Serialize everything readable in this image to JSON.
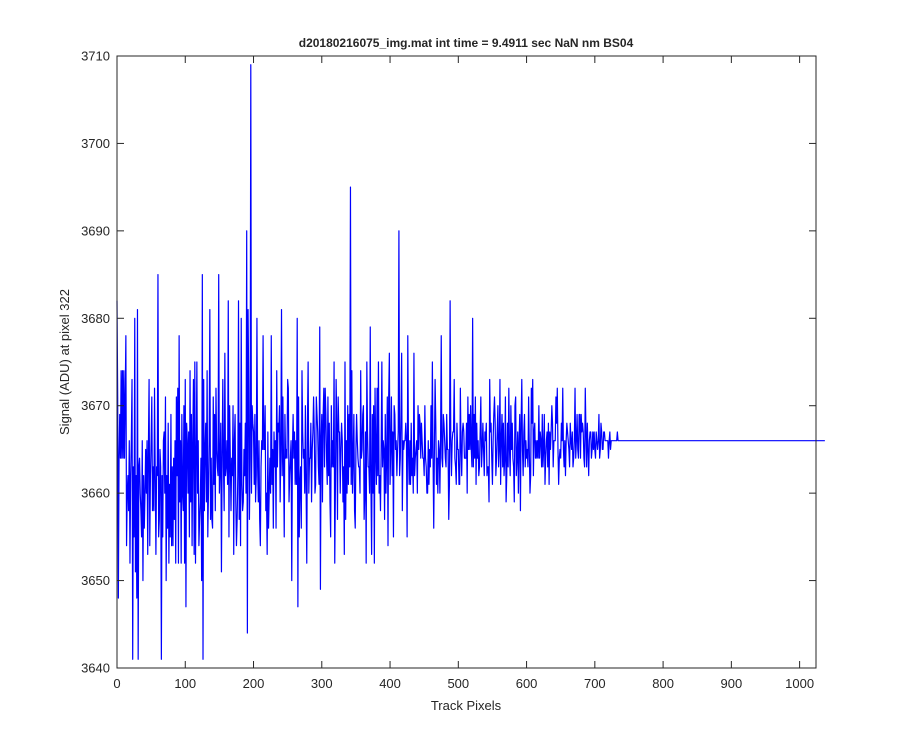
{
  "chart_data": {
    "type": "line",
    "title": "d20180216075_img.mat int time = 9.4911 sec  NaN nm BS04",
    "xlabel": "Track Pixels",
    "ylabel": "Signal (ADU) at pixel 322",
    "xlim": [
      0,
      1024
    ],
    "ylim": [
      3640,
      3710
    ],
    "xticks": [
      0,
      100,
      200,
      300,
      400,
      500,
      600,
      700,
      800,
      900,
      1000
    ],
    "yticks": [
      3640,
      3650,
      3660,
      3670,
      3680,
      3690,
      3700,
      3710
    ],
    "grid": false,
    "series_color": "#0000ff",
    "series": [
      {
        "x_start": 0,
        "x_step": 1,
        "values": [
          3682,
          3671,
          3648,
          3664,
          3669,
          3664,
          3674,
          3664,
          3674,
          3664,
          3674,
          3664,
          3671,
          3678,
          3654,
          3660,
          3662,
          3658,
          3666,
          3652,
          3662,
          3666,
          3673,
          3641,
          3663,
          3655,
          3680,
          3651,
          3662,
          3648,
          3681,
          3641,
          3663,
          3664,
          3660,
          3658,
          3655,
          3666,
          3650,
          3662,
          3656,
          3660,
          3665,
          3660,
          3666,
          3653,
          3665,
          3673,
          3654,
          3662,
          3666,
          3671,
          3658,
          3663,
          3658,
          3672,
          3662,
          3653,
          3663,
          3662,
          3685,
          3655,
          3657,
          3665,
          3663,
          3641,
          3662,
          3655,
          3666,
          3667,
          3660,
          3671,
          3650,
          3662,
          3656,
          3668,
          3652,
          3661,
          3655,
          3669,
          3654,
          3663,
          3654,
          3664,
          3657,
          3666,
          3652,
          3671,
          3662,
          3672,
          3652,
          3678,
          3659,
          3666,
          3652,
          3669,
          3660,
          3658,
          3670,
          3652,
          3673,
          3647,
          3668,
          3666,
          3660,
          3667,
          3655,
          3674,
          3659,
          3669,
          3654,
          3666,
          3673,
          3653,
          3675,
          3652,
          3663,
          3675,
          3660,
          3666,
          3654,
          3657,
          3659,
          3664,
          3650,
          3685,
          3641,
          3673,
          3658,
          3665,
          3668,
          3659,
          3674,
          3655,
          3660,
          3666,
          3681,
          3657,
          3664,
          3657,
          3656,
          3671,
          3661,
          3669,
          3658,
          3672,
          3665,
          3663,
          3662,
          3685,
          3660,
          3663,
          3668,
          3651,
          3664,
          3673,
          3663,
          3658,
          3676,
          3662,
          3663,
          3666,
          3661,
          3682,
          3655,
          3670,
          3664,
          3658,
          3664,
          3662,
          3670,
          3653,
          3666,
          3669,
          3659,
          3654,
          3657,
          3662,
          3682,
          3657,
          3668,
          3654,
          3680,
          3661,
          3658,
          3659,
          3665,
          3662,
          3668,
          3660,
          3690,
          3644,
          3681,
          3672,
          3657,
          3664,
          3709,
          3660,
          3670,
          3668,
          3667,
          3661,
          3669,
          3659,
          3662,
          3680,
          3663,
          3659,
          3666,
          3657,
          3654,
          3663,
          3666,
          3665,
          3678,
          3665,
          3665,
          3670,
          3658,
          3660,
          3653,
          3667,
          3656,
          3660,
          3664,
          3660,
          3678,
          3661,
          3665,
          3656,
          3667,
          3663,
          3666,
          3656,
          3674,
          3663,
          3668,
          3667,
          3670,
          3659,
          3665,
          3681,
          3662,
          3671,
          3663,
          3655,
          3669,
          3664,
          3665,
          3664,
          3673,
          3672,
          3659,
          3662,
          3664,
          3666,
          3650,
          3665,
          3669,
          3664,
          3667,
          3661,
          3666,
          3661,
          3680,
          3647,
          3671,
          3655,
          3661,
          3663,
          3656,
          3674,
          3667,
          3664,
          3665,
          3660,
          3670,
          3661,
          3652,
          3668,
          3675,
          3660,
          3664,
          3664,
          3668,
          3659,
          3665,
          3667,
          3671,
          3667,
          3660,
          3661,
          3671,
          3669,
          3667,
          3663,
          3661,
          3679,
          3649,
          3666,
          3669,
          3659,
          3669,
          3672,
          3663,
          3672,
          3669,
          3664,
          3661,
          3671,
          3662,
          3668,
          3659,
          3655,
          3670,
          3663,
          3666,
          3663,
          3675,
          3652,
          3661,
          3673,
          3668,
          3657,
          3671,
          3667,
          3667,
          3660,
          3665,
          3668,
          3666,
          3659,
          3663,
          3653,
          3675,
          3657,
          3666,
          3660,
          3670,
          3661,
          3669,
          3663,
          3695,
          3661,
          3674,
          3660,
          3664,
          3669,
          3658,
          3656,
          3665,
          3669,
          3666,
          3664,
          3663,
          3663,
          3660,
          3674,
          3664,
          3665,
          3669,
          3670,
          3657,
          3660,
          3667,
          3652,
          3675,
          3667,
          3663,
          3663,
          3660,
          3679,
          3661,
          3653,
          3669,
          3660,
          3670,
          3652,
          3672,
          3665,
          3661,
          3672,
          3662,
          3675,
          3660,
          3662,
          3658,
          3665,
          3675,
          3663,
          3666,
          3665,
          3657,
          3669,
          3660,
          3664,
          3671,
          3654,
          3671,
          3676,
          3661,
          3665,
          3671,
          3662,
          3667,
          3655,
          3670,
          3669,
          3665,
          3666,
          3662,
          3665,
          3667,
          3690,
          3662,
          3664,
          3669,
          3676,
          3658,
          3666,
          3665,
          3666,
          3666,
          3668,
          3666,
          3655,
          3678,
          3665,
          3661,
          3666,
          3661,
          3668,
          3662,
          3664,
          3660,
          3676,
          3662,
          3664,
          3665,
          3666,
          3660,
          3670,
          3665,
          3669,
          3668,
          3664,
          3668,
          3666,
          3664,
          3664,
          3662,
          3670,
          3664,
          3663,
          3660,
          3660,
          3666,
          3661,
          3665,
          3663,
          3670,
          3664,
          3675,
          3664,
          3656,
          3665,
          3673,
          3668,
          3661,
          3664,
          3660,
          3666,
          3665,
          3660,
          3666,
          3678,
          3664,
          3663,
          3669,
          3668,
          3666,
          3664,
          3663,
          3669,
          3665,
          3665,
          3657,
          3661,
          3682,
          3666,
          3662,
          3666,
          3667,
          3667,
          3673,
          3664,
          3663,
          3661,
          3668,
          3665,
          3665,
          3661,
          3661,
          3672,
          3665,
          3662,
          3667,
          3668,
          3667,
          3664,
          3664,
          3664,
          3668,
          3660,
          3671,
          3665,
          3669,
          3665,
          3670,
          3665,
          3663,
          3680,
          3663,
          3669,
          3664,
          3671,
          3661,
          3668,
          3664,
          3666,
          3662,
          3663,
          3667,
          3671,
          3663,
          3665,
          3668,
          3665,
          3662,
          3667,
          3666,
          3668,
          3662,
          3663,
          3663,
          3659,
          3673,
          3667,
          3668,
          3664,
          3661,
          3666,
          3669,
          3671,
          3668,
          3662,
          3664,
          3667,
          3670,
          3663,
          3665,
          3673,
          3661,
          3666,
          3669,
          3663,
          3668,
          3662,
          3664,
          3671,
          3659,
          3662,
          3668,
          3663,
          3672,
          3665,
          3662,
          3670,
          3665,
          3668,
          3664,
          3663,
          3659,
          3670,
          3671,
          3662,
          3664,
          3667,
          3660,
          3666,
          3669,
          3658,
          3668,
          3673,
          3665,
          3662,
          3667,
          3669,
          3663,
          3666,
          3664,
          3665,
          3663,
          3671,
          3665,
          3660,
          3662,
          3672,
          3668,
          3673,
          3662,
          3667,
          3668,
          3664,
          3666,
          3664,
          3666,
          3664,
          3670,
          3664,
          3667,
          3666,
          3663,
          3669,
          3663,
          3665,
          3669,
          3661,
          3664,
          3666,
          3667,
          3663,
          3668,
          3661,
          3667,
          3665,
          3667,
          3670,
          3668,
          3663,
          3666,
          3666,
          3666,
          3671,
          3668,
          3672,
          3665,
          3661,
          3664,
          3665,
          3664,
          3668,
          3666,
          3672,
          3665,
          3663,
          3666,
          3662,
          3666,
          3668,
          3667,
          3666,
          3665,
          3663,
          3668,
          3666,
          3665,
          3667,
          3663,
          3664,
          3666,
          3672,
          3664,
          3666,
          3669,
          3665,
          3664,
          3669,
          3669,
          3664,
          3669,
          3667,
          3668,
          3667,
          3664,
          3663,
          3672,
          3667,
          3663,
          3668,
          3665,
          3662,
          3666,
          3667,
          3667,
          3664,
          3665,
          3667,
          3665,
          3667,
          3665,
          3664,
          3667,
          3666,
          3665,
          3666,
          3669,
          3664,
          3665,
          3668,
          3667,
          3665,
          3665,
          3667,
          3667,
          3666,
          3666,
          3666,
          3666,
          3666,
          3664,
          3666,
          3667,
          3665,
          3666,
          3666,
          3666,
          3666,
          3666,
          3666,
          3666,
          3666,
          3666,
          3667,
          3666,
          3666,
          3666,
          3666,
          3666,
          3666,
          3666,
          3666,
          3666,
          3666,
          3666,
          3666,
          3666,
          3666,
          3666,
          3666,
          3666,
          3666,
          3666,
          3666,
          3666,
          3666,
          3666,
          3666,
          3666,
          3666,
          3666,
          3666,
          3666,
          3666,
          3666,
          3666,
          3666,
          3666,
          3666,
          3666,
          3666,
          3666,
          3666,
          3666,
          3666,
          3666,
          3666,
          3666,
          3666,
          3666,
          3666,
          3666,
          3666,
          3666,
          3666,
          3666,
          3666,
          3666,
          3666,
          3666,
          3666,
          3666,
          3666,
          3666,
          3666,
          3666,
          3666,
          3666,
          3666,
          3666,
          3666,
          3666,
          3666,
          3666,
          3666,
          3666,
          3666,
          3666,
          3666,
          3666,
          3666,
          3666,
          3666,
          3666,
          3666,
          3666,
          3666,
          3666,
          3666,
          3666,
          3666,
          3666,
          3666,
          3666,
          3666,
          3666,
          3666,
          3666,
          3666,
          3666,
          3666,
          3666,
          3666,
          3666,
          3666,
          3666,
          3666,
          3666,
          3666,
          3666,
          3666,
          3666,
          3666,
          3666,
          3666,
          3666,
          3666,
          3666,
          3666,
          3666,
          3666,
          3666,
          3666,
          3666,
          3666,
          3666,
          3666,
          3666,
          3666,
          3666,
          3666,
          3666,
          3666,
          3666,
          3666,
          3666,
          3666,
          3666,
          3666,
          3666,
          3666,
          3666,
          3666,
          3666,
          3666,
          3666,
          3666,
          3666,
          3666,
          3666,
          3666,
          3666,
          3666,
          3666,
          3666,
          3666,
          3666,
          3666,
          3666,
          3666,
          3666,
          3666,
          3666,
          3666,
          3666,
          3666,
          3666,
          3666,
          3666,
          3666,
          3666,
          3666,
          3666,
          3666,
          3666,
          3666,
          3666,
          3666,
          3666,
          3666,
          3666,
          3666,
          3666,
          3666,
          3666,
          3666,
          3666,
          3666,
          3666,
          3666,
          3666,
          3666,
          3666,
          3666,
          3666,
          3666,
          3666,
          3666,
          3666,
          3666,
          3666,
          3666,
          3666,
          3666,
          3666,
          3666,
          3666,
          3666,
          3666,
          3666,
          3666,
          3666,
          3666,
          3666,
          3666,
          3666,
          3666,
          3666,
          3666,
          3666,
          3666,
          3666,
          3666,
          3666,
          3666,
          3666,
          3666,
          3666,
          3666,
          3666,
          3666,
          3666,
          3666,
          3666,
          3666,
          3666,
          3666,
          3666,
          3666,
          3666,
          3666,
          3666,
          3666,
          3666,
          3666,
          3666,
          3666,
          3666,
          3666,
          3666,
          3666,
          3666,
          3666,
          3666,
          3666,
          3666,
          3666,
          3666,
          3666,
          3666,
          3666,
          3666,
          3666,
          3666,
          3666,
          3666,
          3666,
          3666,
          3666,
          3666,
          3666,
          3666,
          3666,
          3666,
          3666,
          3666,
          3666,
          3666,
          3666,
          3666,
          3666,
          3666,
          3666,
          3666,
          3666,
          3666,
          3666,
          3666,
          3666,
          3666,
          3666,
          3666,
          3666,
          3666,
          3666,
          3666,
          3666,
          3666,
          3666,
          3666,
          3666,
          3666,
          3666,
          3666,
          3666,
          3666,
          3666,
          3666
        ]
      }
    ]
  }
}
